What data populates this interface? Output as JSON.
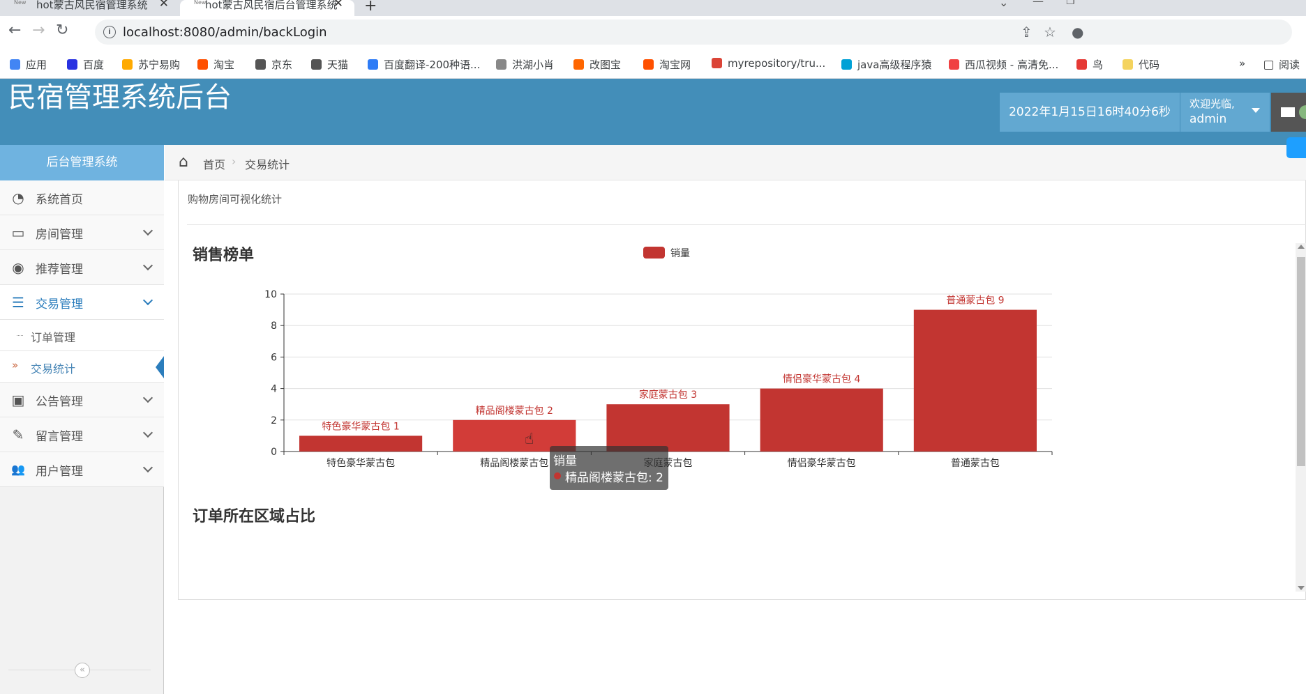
{
  "browser": {
    "tabs": [
      {
        "title": "hot蒙古风民宿管理系统",
        "active": false
      },
      {
        "title": "hot蒙古风民宿后台管理系统",
        "active": true
      }
    ],
    "new_tab_icon": "plus-icon",
    "url": "localhost:8080/admin/backLogin",
    "bookmarks": [
      {
        "label": "应用",
        "color": "#4285f4"
      },
      {
        "label": "百度",
        "color": "#2932e1"
      },
      {
        "label": "苏宁易购",
        "color": "#ffaa00"
      },
      {
        "label": "淘宝",
        "color": "#ff5000"
      },
      {
        "label": "京东",
        "color": "#555555"
      },
      {
        "label": "天猫",
        "color": "#555555"
      },
      {
        "label": "百度翻译-200种语...",
        "color": "#2e7cf6"
      },
      {
        "label": "洪湖小肖",
        "color": "#888888"
      },
      {
        "label": "改图宝",
        "color": "#ff6600"
      },
      {
        "label": "淘宝网",
        "color": "#ff5000"
      },
      {
        "label": "myrepository/tru...",
        "color": "#db4437"
      },
      {
        "label": "java高级程序猿",
        "color": "#00a1d6"
      },
      {
        "label": "西瓜视频 - 高清免...",
        "color": "#f04142"
      },
      {
        "label": "鸟",
        "color": "#e53935"
      },
      {
        "label": "代码",
        "color": "#f4d35e"
      }
    ],
    "more_label": "»",
    "reading_list_label": "阅读"
  },
  "header": {
    "brand": "民宿管理系统后台",
    "datetime": "2022年1月15日16时40分6秒",
    "welcome": "欢迎光临,",
    "username": "admin"
  },
  "sidebar": {
    "title": "后台管理系统",
    "items": [
      {
        "label": "系统首页",
        "icon": "dashboard-icon",
        "glyph": "◔",
        "has_children": false
      },
      {
        "label": "房间管理",
        "icon": "monitor-icon",
        "glyph": "▭",
        "has_children": true
      },
      {
        "label": "推荐管理",
        "icon": "eye-icon",
        "glyph": "◉",
        "has_children": true
      },
      {
        "label": "交易管理",
        "icon": "list-icon",
        "glyph": "☰",
        "has_children": true,
        "open": true
      },
      {
        "label": "公告管理",
        "icon": "picture-icon",
        "glyph": "▣",
        "has_children": true
      },
      {
        "label": "留言管理",
        "icon": "edit-icon",
        "glyph": "✎",
        "has_children": true
      },
      {
        "label": "用户管理",
        "icon": "users-icon",
        "glyph": "👥",
        "has_children": true
      }
    ],
    "sub_items": [
      {
        "label": "订单管理",
        "active": false
      },
      {
        "label": "交易统计",
        "active": true
      }
    ],
    "collapse_glyph": "«"
  },
  "breadcrumb": {
    "home": "首页",
    "current": "交易统计"
  },
  "panel": {
    "title": "购物房间可视化统计",
    "chart1_title": "销售榜单",
    "chart2_title": "订单所在区域占比"
  },
  "chart_data": {
    "type": "bar",
    "title": "销售榜单",
    "legend": [
      "销量"
    ],
    "legend_position": "top-center",
    "categories": [
      "特色豪华蒙古包",
      "精品阁楼蒙古包",
      "家庭蒙古包",
      "情侣豪华蒙古包",
      "普通蒙古包"
    ],
    "series": [
      {
        "name": "销量",
        "values": [
          1,
          2,
          3,
          4,
          9
        ],
        "color": "#c23531"
      }
    ],
    "data_labels": [
      "特色豪华蒙古包 1",
      "精品阁楼蒙古包 2",
      "家庭蒙古包 3",
      "情侣豪华蒙古包 4",
      "普通蒙古包 9"
    ],
    "yticks": [
      0,
      2,
      4,
      6,
      8,
      10
    ],
    "ylim": [
      0,
      10
    ],
    "grid": true,
    "highlighted_index": 1
  },
  "tooltip": {
    "title": "销量",
    "text": "精品阁楼蒙古包: 2"
  }
}
